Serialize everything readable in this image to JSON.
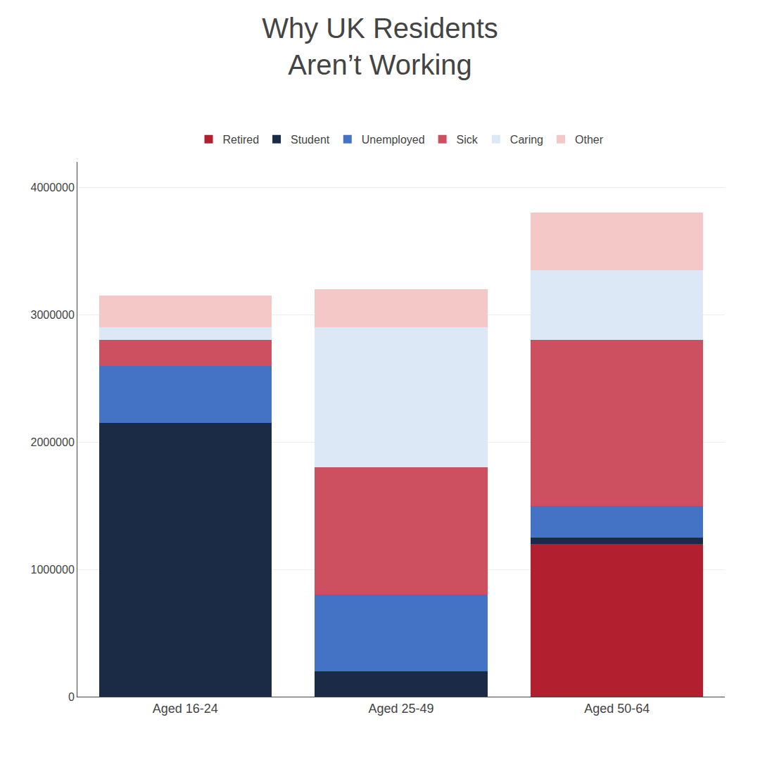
{
  "chart_data": {
    "type": "bar",
    "title": "Why UK Residents\nAren’t Working",
    "categories": [
      "Aged 16-24",
      "Aged 25-49",
      "Aged 50-64"
    ],
    "series": [
      {
        "name": "Retired",
        "color": "#b22030",
        "values": [
          0,
          0,
          1200000
        ]
      },
      {
        "name": "Student",
        "color": "#1b2a45",
        "values": [
          2150000,
          200000,
          50000
        ]
      },
      {
        "name": "Unemployed",
        "color": "#4472c4",
        "values": [
          450000,
          600000,
          250000
        ]
      },
      {
        "name": "Sick",
        "color": "#cd5060",
        "values": [
          200000,
          1000000,
          1300000
        ]
      },
      {
        "name": "Caring",
        "color": "#dce8f5",
        "values": [
          100000,
          1100000,
          550000
        ]
      },
      {
        "name": "Other",
        "color": "#f5c8c8",
        "values": [
          250000,
          300000,
          450000
        ]
      }
    ],
    "stacked": true,
    "ylim": [
      0,
      4200000
    ],
    "yticks": [
      0,
      1000000,
      2000000,
      3000000,
      4000000
    ],
    "grid": true,
    "legend": "top"
  }
}
